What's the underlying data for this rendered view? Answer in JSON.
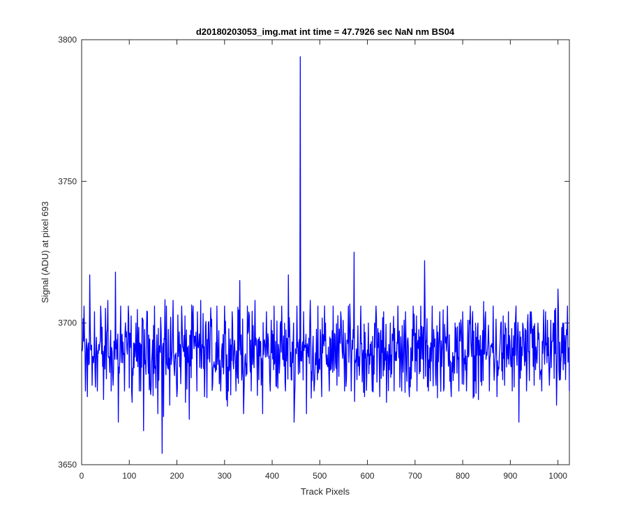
{
  "figure": {
    "background": "#ffffff",
    "axes_color": "#262626"
  },
  "chart_data": {
    "type": "line",
    "title": "d20180203053_img.mat int time = 47.7926 sec  NaN nm BS04",
    "xlabel": "Track Pixels",
    "ylabel": "Signal (ADU) at pixel 693",
    "xlim": [
      0,
      1024
    ],
    "ylim": [
      3650,
      3800
    ],
    "xticks": [
      0,
      100,
      200,
      300,
      400,
      500,
      600,
      700,
      800,
      900,
      1000
    ],
    "yticks": [
      3650,
      3700,
      3750,
      3800
    ],
    "grid": false,
    "legend": "none",
    "series": [
      {
        "color": "#0000ff",
        "x_start": 1,
        "x_step": 1,
        "noise_model": {
          "mean": 3690,
          "sd": 8.5,
          "min": 3662,
          "max": 3718
        },
        "values_by_x_approx": [
          {
            "x": 1,
            "y": 3690
          },
          {
            "x": 5,
            "y": 3706
          },
          {
            "x": 8,
            "y": 3676
          },
          {
            "x": 12,
            "y": 3674
          },
          {
            "x": 17,
            "y": 3717
          },
          {
            "x": 22,
            "y": 3678
          },
          {
            "x": 27,
            "y": 3704
          },
          {
            "x": 33,
            "y": 3676
          },
          {
            "x": 40,
            "y": 3706
          },
          {
            "x": 46,
            "y": 3673
          },
          {
            "x": 55,
            "y": 3708
          },
          {
            "x": 62,
            "y": 3676
          },
          {
            "x": 71,
            "y": 3718
          },
          {
            "x": 77,
            "y": 3665
          },
          {
            "x": 82,
            "y": 3706
          },
          {
            "x": 90,
            "y": 3676
          },
          {
            "x": 98,
            "y": 3706
          },
          {
            "x": 106,
            "y": 3672
          },
          {
            "x": 114,
            "y": 3700
          },
          {
            "x": 121,
            "y": 3676
          },
          {
            "x": 130,
            "y": 3662
          },
          {
            "x": 138,
            "y": 3704
          },
          {
            "x": 146,
            "y": 3678
          },
          {
            "x": 153,
            "y": 3706
          },
          {
            "x": 160,
            "y": 3668
          },
          {
            "x": 166,
            "y": 3702
          },
          {
            "x": 169,
            "y": 3654
          },
          {
            "x": 172,
            "y": 3667
          },
          {
            "x": 178,
            "y": 3706
          },
          {
            "x": 185,
            "y": 3671
          },
          {
            "x": 192,
            "y": 3708
          },
          {
            "x": 200,
            "y": 3674
          },
          {
            "x": 210,
            "y": 3706
          },
          {
            "x": 218,
            "y": 3672
          },
          {
            "x": 226,
            "y": 3666
          },
          {
            "x": 234,
            "y": 3706
          },
          {
            "x": 242,
            "y": 3676
          },
          {
            "x": 250,
            "y": 3708
          },
          {
            "x": 258,
            "y": 3674
          },
          {
            "x": 266,
            "y": 3700
          },
          {
            "x": 275,
            "y": 3678
          },
          {
            "x": 284,
            "y": 3706
          },
          {
            "x": 292,
            "y": 3676
          },
          {
            "x": 300,
            "y": 3706
          },
          {
            "x": 308,
            "y": 3676
          },
          {
            "x": 316,
            "y": 3704
          },
          {
            "x": 324,
            "y": 3676
          },
          {
            "x": 332,
            "y": 3715
          },
          {
            "x": 340,
            "y": 3668
          },
          {
            "x": 348,
            "y": 3706
          },
          {
            "x": 356,
            "y": 3676
          },
          {
            "x": 364,
            "y": 3708
          },
          {
            "x": 372,
            "y": 3680
          },
          {
            "x": 380,
            "y": 3668
          },
          {
            "x": 388,
            "y": 3704
          },
          {
            "x": 396,
            "y": 3676
          },
          {
            "x": 404,
            "y": 3706
          },
          {
            "x": 412,
            "y": 3677
          },
          {
            "x": 420,
            "y": 3706
          },
          {
            "x": 428,
            "y": 3676
          },
          {
            "x": 434,
            "y": 3717
          },
          {
            "x": 440,
            "y": 3680
          },
          {
            "x": 446,
            "y": 3665
          },
          {
            "x": 452,
            "y": 3706
          },
          {
            "x": 456,
            "y": 3690
          },
          {
            "x": 459,
            "y": 3794
          },
          {
            "x": 461,
            "y": 3690
          },
          {
            "x": 466,
            "y": 3704
          },
          {
            "x": 472,
            "y": 3668
          },
          {
            "x": 480,
            "y": 3708
          },
          {
            "x": 488,
            "y": 3676
          },
          {
            "x": 496,
            "y": 3706
          },
          {
            "x": 504,
            "y": 3674
          },
          {
            "x": 512,
            "y": 3700
          },
          {
            "x": 520,
            "y": 3676
          },
          {
            "x": 528,
            "y": 3706
          },
          {
            "x": 536,
            "y": 3678
          },
          {
            "x": 544,
            "y": 3704
          },
          {
            "x": 552,
            "y": 3676
          },
          {
            "x": 560,
            "y": 3706
          },
          {
            "x": 566,
            "y": 3676
          },
          {
            "x": 572,
            "y": 3725
          },
          {
            "x": 578,
            "y": 3680
          },
          {
            "x": 586,
            "y": 3706
          },
          {
            "x": 594,
            "y": 3674
          },
          {
            "x": 602,
            "y": 3700
          },
          {
            "x": 610,
            "y": 3676
          },
          {
            "x": 618,
            "y": 3706
          },
          {
            "x": 626,
            "y": 3674
          },
          {
            "x": 634,
            "y": 3704
          },
          {
            "x": 640,
            "y": 3672
          },
          {
            "x": 648,
            "y": 3700
          },
          {
            "x": 656,
            "y": 3676
          },
          {
            "x": 664,
            "y": 3706
          },
          {
            "x": 672,
            "y": 3676
          },
          {
            "x": 680,
            "y": 3704
          },
          {
            "x": 688,
            "y": 3674
          },
          {
            "x": 696,
            "y": 3706
          },
          {
            "x": 704,
            "y": 3676
          },
          {
            "x": 712,
            "y": 3706
          },
          {
            "x": 720,
            "y": 3722
          },
          {
            "x": 728,
            "y": 3676
          },
          {
            "x": 736,
            "y": 3706
          },
          {
            "x": 744,
            "y": 3678
          },
          {
            "x": 752,
            "y": 3704
          },
          {
            "x": 760,
            "y": 3676
          },
          {
            "x": 768,
            "y": 3706
          },
          {
            "x": 776,
            "y": 3674
          },
          {
            "x": 784,
            "y": 3700
          },
          {
            "x": 792,
            "y": 3676
          },
          {
            "x": 800,
            "y": 3704
          },
          {
            "x": 808,
            "y": 3676
          },
          {
            "x": 816,
            "y": 3706
          },
          {
            "x": 824,
            "y": 3674
          },
          {
            "x": 832,
            "y": 3700
          },
          {
            "x": 840,
            "y": 3678
          },
          {
            "x": 848,
            "y": 3704
          },
          {
            "x": 856,
            "y": 3676
          },
          {
            "x": 864,
            "y": 3706
          },
          {
            "x": 872,
            "y": 3674
          },
          {
            "x": 880,
            "y": 3700
          },
          {
            "x": 888,
            "y": 3678
          },
          {
            "x": 896,
            "y": 3704
          },
          {
            "x": 904,
            "y": 3676
          },
          {
            "x": 912,
            "y": 3706
          },
          {
            "x": 918,
            "y": 3665
          },
          {
            "x": 926,
            "y": 3700
          },
          {
            "x": 934,
            "y": 3676
          },
          {
            "x": 942,
            "y": 3704
          },
          {
            "x": 950,
            "y": 3678
          },
          {
            "x": 958,
            "y": 3700
          },
          {
            "x": 966,
            "y": 3676
          },
          {
            "x": 974,
            "y": 3704
          },
          {
            "x": 982,
            "y": 3678
          },
          {
            "x": 990,
            "y": 3700
          },
          {
            "x": 997,
            "y": 3671
          },
          {
            "x": 1000,
            "y": 3712
          },
          {
            "x": 1005,
            "y": 3680
          },
          {
            "x": 1010,
            "y": 3700
          },
          {
            "x": 1016,
            "y": 3680
          },
          {
            "x": 1020,
            "y": 3706
          },
          {
            "x": 1024,
            "y": 3676
          }
        ]
      }
    ]
  }
}
